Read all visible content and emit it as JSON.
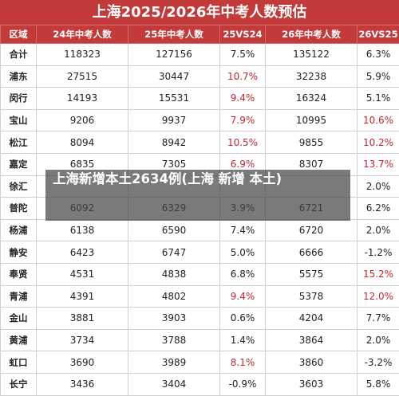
{
  "title": "上海2025/2026年中考人数预估",
  "headers": [
    "区域",
    "24年中考人数",
    "25年中考人数",
    "25VS24",
    "26年中考人数",
    "26VS25"
  ],
  "rows": [
    {
      "region": "合计",
      "y24": "118323",
      "y25": "127156",
      "c25": "7.5%",
      "y26": "135122",
      "c26": "6.3%",
      "hl25": false,
      "hl26": false
    },
    {
      "region": "浦东",
      "y24": "27515",
      "y25": "30447",
      "c25": "10.7%",
      "y26": "32238",
      "c26": "5.9%",
      "hl25": true,
      "hl26": false
    },
    {
      "region": "闵行",
      "y24": "14193",
      "y25": "15531",
      "c25": "9.4%",
      "y26": "16324",
      "c26": "5.1%",
      "hl25": true,
      "hl26": false
    },
    {
      "region": "宝山",
      "y24": "9206",
      "y25": "9937",
      "c25": "7.9%",
      "y26": "10995",
      "c26": "10.6%",
      "hl25": true,
      "hl26": true
    },
    {
      "region": "松江",
      "y24": "8094",
      "y25": "8942",
      "c25": "10.5%",
      "y26": "9855",
      "c26": "10.2%",
      "hl25": true,
      "hl26": true
    },
    {
      "region": "嘉定",
      "y24": "6835",
      "y25": "7305",
      "c25": "6.9%",
      "y26": "8307",
      "c26": "13.7%",
      "hl25": true,
      "hl26": true
    },
    {
      "region": "徐汇",
      "y24": "",
      "y25": "",
      "c25": "",
      "y26": "",
      "c26": "2.0%",
      "hl25": false,
      "hl26": false
    },
    {
      "region": "普陀",
      "y24": "6092",
      "y25": "6329",
      "c25": "3.9%",
      "y26": "6721",
      "c26": "6.2%",
      "hl25": false,
      "hl26": false
    },
    {
      "region": "杨浦",
      "y24": "6138",
      "y25": "6590",
      "c25": "7.4%",
      "y26": "6720",
      "c26": "2.0%",
      "hl25": false,
      "hl26": false
    },
    {
      "region": "静安",
      "y24": "6423",
      "y25": "6747",
      "c25": "5.0%",
      "y26": "6666",
      "c26": "-1.2%",
      "hl25": false,
      "hl26": false
    },
    {
      "region": "奉贤",
      "y24": "4531",
      "y25": "4838",
      "c25": "6.8%",
      "y26": "5575",
      "c26": "15.2%",
      "hl25": false,
      "hl26": true
    },
    {
      "region": "青浦",
      "y24": "4391",
      "y25": "4802",
      "c25": "9.4%",
      "y26": "5378",
      "c26": "12.0%",
      "hl25": true,
      "hl26": true
    },
    {
      "region": "金山",
      "y24": "3881",
      "y25": "3903",
      "c25": "0.6%",
      "y26": "4204",
      "c26": "7.7%",
      "hl25": false,
      "hl26": false
    },
    {
      "region": "黄浦",
      "y24": "3734",
      "y25": "3788",
      "c25": "1.4%",
      "y26": "3864",
      "c26": "2.0%",
      "hl25": false,
      "hl26": false
    },
    {
      "region": "虹口",
      "y24": "3690",
      "y25": "3989",
      "c25": "8.1%",
      "y26": "3860",
      "c26": "-3.2%",
      "hl25": true,
      "hl26": false
    },
    {
      "region": "长宁",
      "y24": "3436",
      "y25": "3404",
      "c25": "-0.9%",
      "y26": "3603",
      "c26": "5.8%",
      "hl25": false,
      "hl26": false
    }
  ],
  "overlay_caption": "上海新增本土2634例(上海 新增 本土)",
  "colors": {
    "header_bg": "#c33a3a",
    "highlight_text": "#c0282e",
    "overlay_bg": "#464646"
  }
}
